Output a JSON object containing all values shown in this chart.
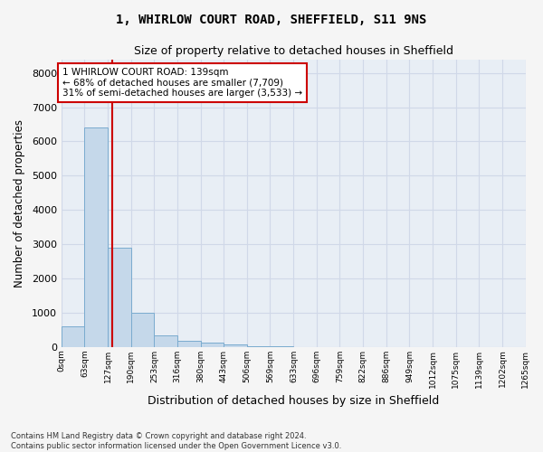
{
  "title1": "1, WHIRLOW COURT ROAD, SHEFFIELD, S11 9NS",
  "title2": "Size of property relative to detached houses in Sheffield",
  "xlabel": "Distribution of detached houses by size in Sheffield",
  "ylabel": "Number of detached properties",
  "footnote1": "Contains HM Land Registry data © Crown copyright and database right 2024.",
  "footnote2": "Contains public sector information licensed under the Open Government Licence v3.0.",
  "bin_edges": [
    0,
    63,
    127,
    190,
    253,
    316,
    380,
    443,
    506,
    569,
    633,
    696,
    759,
    822,
    886,
    949,
    1012,
    1075,
    1139,
    1202,
    1265
  ],
  "bin_labels": [
    "0sqm",
    "63sqm",
    "127sqm",
    "190sqm",
    "253sqm",
    "316sqm",
    "380sqm",
    "443sqm",
    "506sqm",
    "569sqm",
    "633sqm",
    "696sqm",
    "759sqm",
    "822sqm",
    "886sqm",
    "949sqm",
    "1012sqm",
    "1075sqm",
    "1139sqm",
    "1202sqm",
    "1265sqm"
  ],
  "bar_heights": [
    600,
    6400,
    2900,
    1000,
    350,
    180,
    120,
    80,
    25,
    12,
    6,
    4,
    2,
    1,
    1,
    0,
    0,
    0,
    0,
    0
  ],
  "bar_color": "#c5d8ea",
  "bar_edge_color": "#7aabcf",
  "bg_color": "#e8eef5",
  "grid_color": "#d0d8e8",
  "property_size": 139,
  "vline_color": "#cc0000",
  "annotation_line1": "1 WHIRLOW COURT ROAD: 139sqm",
  "annotation_line2": "← 68% of detached houses are smaller (7,709)",
  "annotation_line3": "31% of semi-detached houses are larger (3,533) →",
  "annotation_box_color": "#ffffff",
  "annotation_box_edge": "#cc0000",
  "ylim": [
    0,
    8400
  ],
  "yticks": [
    0,
    1000,
    2000,
    3000,
    4000,
    5000,
    6000,
    7000,
    8000
  ],
  "fig_facecolor": "#f5f5f5"
}
